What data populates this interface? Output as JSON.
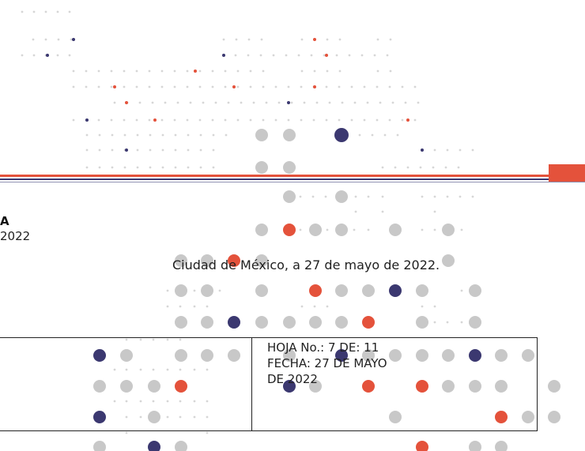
{
  "document": {
    "heading_fragment": "A",
    "year_fragment": "2022",
    "place_date": "Ciudad de México, a 27 de mayo de 2022.",
    "sheet": {
      "hoja_line": "HOJA No.: 7 DE: 11",
      "fecha_line1": "FECHA: 27 DE MAYO",
      "fecha_line2": "DE 2022"
    }
  },
  "theme": {
    "orange": "#e4523b",
    "navy": "#3b3870",
    "gray": "#c8c8c8",
    "light_gray": "#d6d6d6"
  }
}
